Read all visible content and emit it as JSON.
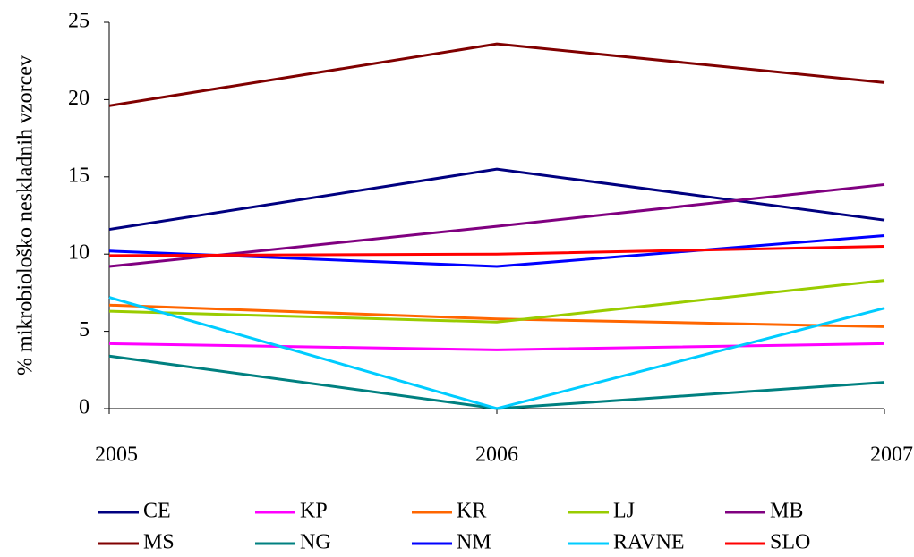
{
  "chart_data": {
    "type": "line",
    "y_label": "% mikrobiološko neskladnih vzorcev",
    "categories": [
      "2005",
      "2006",
      "2007"
    ],
    "series": [
      {
        "name": "CE",
        "color": "#000080",
        "values": [
          11.6,
          15.5,
          12.2
        ]
      },
      {
        "name": "KP",
        "color": "#ff00ff",
        "values": [
          4.2,
          3.8,
          4.2
        ]
      },
      {
        "name": "KR",
        "color": "#ff6600",
        "values": [
          6.7,
          5.8,
          5.3
        ]
      },
      {
        "name": "LJ",
        "color": "#99cc00",
        "values": [
          6.3,
          5.6,
          8.3
        ]
      },
      {
        "name": "MB",
        "color": "#800080",
        "values": [
          9.2,
          11.8,
          14.5
        ]
      },
      {
        "name": "MS",
        "color": "#800000",
        "values": [
          19.6,
          23.6,
          21.1
        ]
      },
      {
        "name": "NG",
        "color": "#008080",
        "values": [
          3.4,
          0,
          1.7
        ]
      },
      {
        "name": "NM",
        "color": "#0000ff",
        "values": [
          10.2,
          9.2,
          11.2
        ]
      },
      {
        "name": "RAVNE",
        "color": "#00ccff",
        "values": [
          7.2,
          0,
          6.5
        ]
      },
      {
        "name": "SLO",
        "color": "#ff0000",
        "values": [
          9.9,
          10.0,
          10.5
        ]
      }
    ],
    "ylim": [
      0,
      25
    ],
    "yticks": [
      0,
      5,
      10,
      15,
      20,
      25
    ],
    "grid": false
  }
}
